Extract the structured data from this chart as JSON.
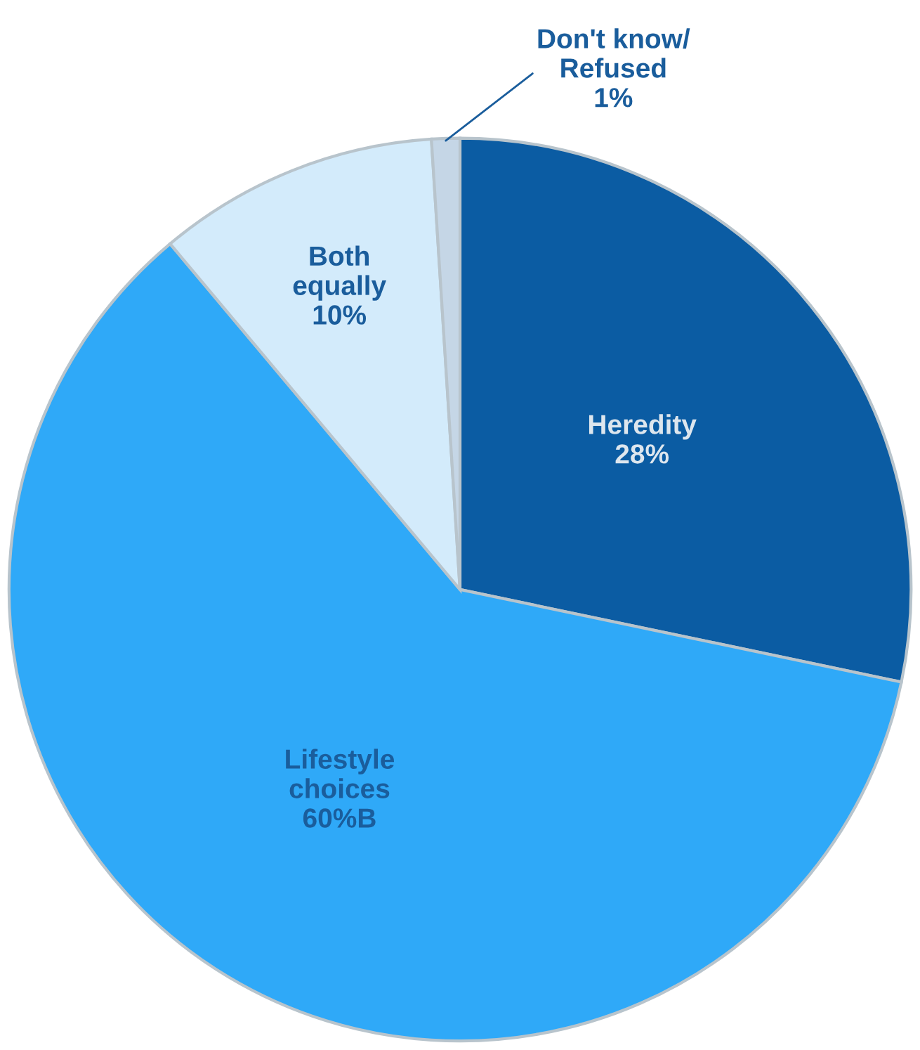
{
  "chart_data": {
    "type": "pie",
    "categories": [
      "Heredity",
      "Lifestyle\nchoices",
      "Both\nequally",
      "Don't know/\nRefused"
    ],
    "values": [
      28,
      60,
      10,
      1
    ],
    "value_labels": [
      "28%",
      "60%B",
      "10%",
      "1%"
    ],
    "colors": [
      "#0b5ca3",
      "#2fa9f8",
      "#d3ebfb",
      "#c5d6e6"
    ],
    "legend": false
  }
}
